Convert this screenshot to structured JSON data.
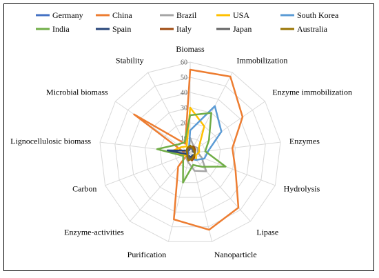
{
  "chart_data": {
    "type": "radar",
    "title": "",
    "axes": [
      "Biomass",
      "Immobilization",
      "Enzyme immobilization",
      "Enzymes",
      "Hydrolysis",
      "Lipase",
      "Nanoparticle",
      "Purification",
      "Enzyme-activities",
      "Carbon",
      "Lignocellulosic biomass",
      "Microbial biomass",
      "Stability"
    ],
    "r_ticks": [
      0,
      10,
      20,
      30,
      40,
      50,
      60
    ],
    "rlim": [
      0,
      60
    ],
    "grid": true,
    "legend_position": "top",
    "series": [
      {
        "name": "Germany",
        "color": "#4472C4",
        "values": [
          3,
          3,
          2,
          3,
          3,
          2,
          3,
          4,
          2,
          2,
          1,
          3,
          2
        ]
      },
      {
        "name": "China",
        "color": "#ED7D31",
        "values": [
          55,
          57,
          42,
          28,
          32,
          48,
          52,
          45,
          12,
          2,
          4,
          45,
          7
        ]
      },
      {
        "name": "Brazil",
        "color": "#A5A5A5",
        "values": [
          10,
          5,
          6,
          5,
          8,
          16,
          12,
          6,
          4,
          3,
          2,
          2,
          2
        ]
      },
      {
        "name": "USA",
        "color": "#FFC000",
        "values": [
          30,
          20,
          7,
          6,
          4,
          6,
          3,
          3,
          3,
          4,
          12,
          7,
          5
        ]
      },
      {
        "name": "South Korea",
        "color": "#5B9BD5",
        "values": [
          15,
          35,
          25,
          12,
          10,
          6,
          4,
          3,
          3,
          2,
          3,
          2,
          2
        ]
      },
      {
        "name": "India",
        "color": "#70AD47",
        "values": [
          25,
          30,
          15,
          10,
          25,
          12,
          8,
          20,
          7,
          5,
          22,
          10,
          8
        ]
      },
      {
        "name": "Spain",
        "color": "#264478",
        "values": [
          4,
          5,
          4,
          3,
          3,
          2,
          3,
          2,
          2,
          2,
          15,
          3,
          2
        ]
      },
      {
        "name": "Italy",
        "color": "#9E480E",
        "values": [
          4,
          5,
          4,
          3,
          3,
          4,
          5,
          3,
          3,
          2,
          2,
          3,
          3
        ]
      },
      {
        "name": "Japan",
        "color": "#636363",
        "values": [
          3,
          4,
          2,
          3,
          3,
          3,
          4,
          3,
          2,
          2,
          2,
          2,
          3
        ]
      },
      {
        "name": "Australia",
        "color": "#997300",
        "values": [
          5,
          4,
          3,
          3,
          3,
          3,
          4,
          5,
          3,
          2,
          2,
          3,
          4
        ]
      }
    ]
  }
}
